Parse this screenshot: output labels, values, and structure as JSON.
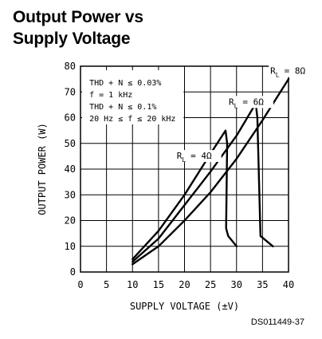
{
  "title_line1": "Output Power vs",
  "title_line2": "Supply Voltage",
  "code": "DS011449-37",
  "chart_data": {
    "type": "line",
    "title": "Output Power vs Supply Voltage",
    "xlabel": "SUPPLY VOLTAGE (±V)",
    "ylabel": "OUTPUT POWER (W)",
    "xlim": [
      0,
      40
    ],
    "ylim": [
      0,
      80
    ],
    "xticks": [
      0,
      5,
      10,
      15,
      20,
      25,
      30,
      35,
      40
    ],
    "yticks": [
      0,
      10,
      20,
      30,
      40,
      50,
      60,
      70,
      80
    ],
    "grid": true,
    "annotations": [
      "THD + N ≤ 0.03%",
      "f = 1 kHz",
      "THD + N ≤ 0.1%",
      "20 Hz ≤ f ≤ 20 kHz"
    ],
    "series": [
      {
        "name": "RL = 4Ω",
        "label_main": "R",
        "label_sub": "L",
        "label_val": "= 4Ω",
        "x": [
          10,
          15,
          20,
          25,
          27.9,
          28.2,
          28.0,
          28.4,
          30
        ],
        "y": [
          5,
          16,
          30,
          46,
          55,
          50,
          17,
          14,
          10
        ]
      },
      {
        "name": "RL = 6Ω",
        "label_main": "R",
        "label_sub": "L",
        "label_val": "= 6Ω",
        "x": [
          10,
          15,
          20,
          25,
          30,
          33.7,
          34.0,
          34.6,
          35.2,
          37
        ],
        "y": [
          4,
          13,
          26,
          39,
          53,
          65.5,
          60,
          14,
          13,
          10
        ]
      },
      {
        "name": "RL = 8Ω",
        "label_main": "R",
        "label_sub": "L",
        "label_val": "= 8Ω",
        "x": [
          10,
          15,
          20,
          25,
          30,
          35,
          40
        ],
        "y": [
          3,
          10,
          20,
          31,
          44,
          59,
          75
        ]
      }
    ]
  }
}
